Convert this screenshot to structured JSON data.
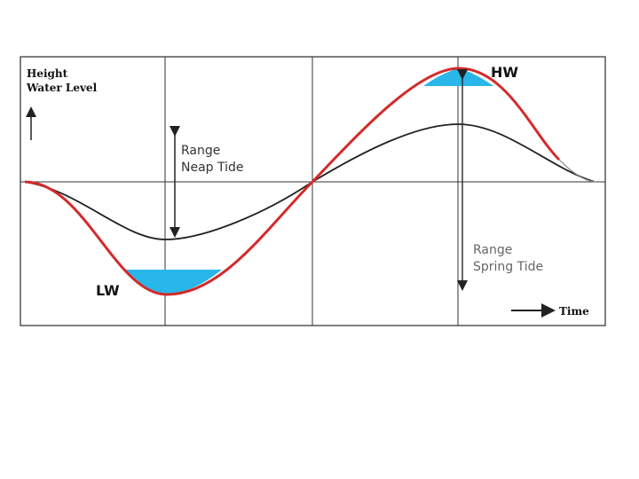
{
  "diagram": {
    "y_axis_label_line1": "Height",
    "y_axis_label_line2": "Water Level",
    "x_axis_label": "Time",
    "neap_range_line1": "Range",
    "neap_range_line2": "Neap Tide",
    "spring_range_line1": "Range",
    "spring_range_line2": "Spring Tide",
    "low_water_label": "LW",
    "high_water_label": "HW",
    "colors": {
      "spring_curve": "#d42a2a",
      "neap_curve": "#222222",
      "water_fill": "#29b6e8",
      "grid": "#333333",
      "frame": "#555555"
    }
  }
}
